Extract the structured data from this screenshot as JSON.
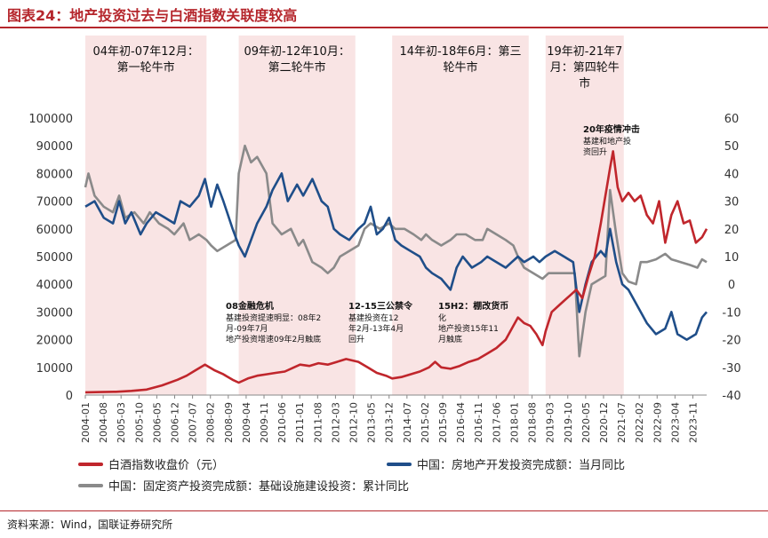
{
  "header": {
    "title": "图表24：地产投资过去与白酒指数关联度较高"
  },
  "footer": {
    "source": "资料来源：Wind，国联证券研究所"
  },
  "chart_data": {
    "type": "line",
    "left_axis": {
      "min": 0,
      "max": 100000,
      "ticks": [
        0,
        10000,
        20000,
        30000,
        40000,
        50000,
        60000,
        70000,
        80000,
        90000,
        100000
      ]
    },
    "right_axis": {
      "min": -40,
      "max": 60,
      "ticks": [
        -40,
        -30,
        -20,
        -10,
        0,
        10,
        20,
        30,
        40,
        50,
        60
      ]
    },
    "x_start": 2004.0,
    "x_end": 2024.25,
    "x_ticks": [
      "2004-01",
      "2004-08",
      "2005-03",
      "2005-10",
      "2006-05",
      "2006-12",
      "2007-07",
      "2008-02",
      "2008-09",
      "2009-04",
      "2009-11",
      "2010-06",
      "2011-01",
      "2011-08",
      "2012-03",
      "2012-10",
      "2013-05",
      "2013-12",
      "2014-07",
      "2015-02",
      "2015-09",
      "2016-04",
      "2016-11",
      "2017-06",
      "2018-01",
      "2018-08",
      "2019-03",
      "2019-10",
      "2020-05",
      "2020-12",
      "2021-07",
      "2022-02",
      "2022-09",
      "2023-04",
      "2023-11"
    ],
    "bands": [
      {
        "start": 2004.0,
        "end": 2007.95,
        "label": [
          "04年初-07年12月：",
          "第一轮牛市"
        ]
      },
      {
        "start": 2009.0,
        "end": 2012.8,
        "label": [
          "09年初-12年10月：",
          "第二轮牛市"
        ]
      },
      {
        "start": 2014.0,
        "end": 2018.45,
        "label": [
          "14年初-18年6月：第三",
          "轮牛市"
        ]
      },
      {
        "start": 2019.0,
        "end": 2021.55,
        "label": [
          "19年初-21年7",
          "月：第四轮牛",
          "市"
        ]
      }
    ],
    "annotations": [
      {
        "title": "08金融危机",
        "lines": [
          "基建投资提速明显：08年2",
          "月-09年7月",
          "地产投资增速09年2月触底"
        ]
      },
      {
        "title": "12-15三公禁令",
        "lines": [
          "基建投资在12",
          "年2月-13年4月",
          "回升"
        ]
      },
      {
        "title": "15H2：棚改货币",
        "lines": [
          "化",
          "地产投资15年11",
          "月触底"
        ]
      },
      {
        "title": "20年疫情冲击",
        "lines": [
          "基建和地产投",
          "资回升"
        ]
      }
    ],
    "series": [
      {
        "name": "白酒指数收盘价（元）",
        "color": "#c0262c",
        "axis": "left",
        "points": [
          [
            2004.0,
            1000
          ],
          [
            2004.5,
            1100
          ],
          [
            2005.0,
            1200
          ],
          [
            2005.5,
            1500
          ],
          [
            2006.0,
            2000
          ],
          [
            2006.5,
            3500
          ],
          [
            2007.0,
            5500
          ],
          [
            2007.3,
            7000
          ],
          [
            2007.6,
            9000
          ],
          [
            2007.9,
            11000
          ],
          [
            2008.2,
            9000
          ],
          [
            2008.5,
            7500
          ],
          [
            2008.8,
            5500
          ],
          [
            2009.0,
            4500
          ],
          [
            2009.3,
            6000
          ],
          [
            2009.6,
            7000
          ],
          [
            2009.9,
            7500
          ],
          [
            2010.2,
            8000
          ],
          [
            2010.5,
            8500
          ],
          [
            2010.8,
            10000
          ],
          [
            2011.0,
            11000
          ],
          [
            2011.3,
            10500
          ],
          [
            2011.6,
            11500
          ],
          [
            2011.9,
            11000
          ],
          [
            2012.2,
            12000
          ],
          [
            2012.5,
            13000
          ],
          [
            2012.7,
            12500
          ],
          [
            2012.9,
            12000
          ],
          [
            2013.2,
            10000
          ],
          [
            2013.5,
            8000
          ],
          [
            2013.8,
            7000
          ],
          [
            2014.0,
            6000
          ],
          [
            2014.3,
            6500
          ],
          [
            2014.6,
            7500
          ],
          [
            2014.9,
            8500
          ],
          [
            2015.2,
            10000
          ],
          [
            2015.4,
            12000
          ],
          [
            2015.6,
            10000
          ],
          [
            2015.9,
            9500
          ],
          [
            2016.2,
            10500
          ],
          [
            2016.5,
            12000
          ],
          [
            2016.8,
            13000
          ],
          [
            2017.1,
            15000
          ],
          [
            2017.4,
            17000
          ],
          [
            2017.7,
            20000
          ],
          [
            2017.95,
            25000
          ],
          [
            2018.1,
            28000
          ],
          [
            2018.3,
            26000
          ],
          [
            2018.5,
            25000
          ],
          [
            2018.7,
            22000
          ],
          [
            2018.9,
            18000
          ],
          [
            2019.0,
            23000
          ],
          [
            2019.2,
            30000
          ],
          [
            2019.5,
            33000
          ],
          [
            2019.8,
            36000
          ],
          [
            2020.0,
            38000
          ],
          [
            2020.2,
            35000
          ],
          [
            2020.4,
            43000
          ],
          [
            2020.6,
            50000
          ],
          [
            2020.8,
            62000
          ],
          [
            2020.95,
            72000
          ],
          [
            2021.1,
            82000
          ],
          [
            2021.2,
            88000
          ],
          [
            2021.35,
            75000
          ],
          [
            2021.5,
            70000
          ],
          [
            2021.7,
            73000
          ],
          [
            2021.9,
            70000
          ],
          [
            2022.1,
            72000
          ],
          [
            2022.3,
            65000
          ],
          [
            2022.5,
            62000
          ],
          [
            2022.7,
            70000
          ],
          [
            2022.9,
            55000
          ],
          [
            2023.1,
            65000
          ],
          [
            2023.3,
            70000
          ],
          [
            2023.5,
            62000
          ],
          [
            2023.7,
            63000
          ],
          [
            2023.9,
            55000
          ],
          [
            2024.1,
            57000
          ],
          [
            2024.25,
            60000
          ]
        ]
      },
      {
        "name": "中国：房地产开发投资完成额：当月同比",
        "color": "#1f4e89",
        "axis": "right",
        "points": [
          [
            2004.0,
            28
          ],
          [
            2004.3,
            30
          ],
          [
            2004.6,
            24
          ],
          [
            2004.9,
            22
          ],
          [
            2005.1,
            30
          ],
          [
            2005.3,
            22
          ],
          [
            2005.5,
            26
          ],
          [
            2005.8,
            18
          ],
          [
            2006.0,
            22
          ],
          [
            2006.3,
            26
          ],
          [
            2006.6,
            24
          ],
          [
            2006.9,
            22
          ],
          [
            2007.1,
            30
          ],
          [
            2007.4,
            28
          ],
          [
            2007.7,
            32
          ],
          [
            2007.9,
            38
          ],
          [
            2008.1,
            28
          ],
          [
            2008.3,
            36
          ],
          [
            2008.5,
            30
          ],
          [
            2008.8,
            20
          ],
          [
            2009.0,
            14
          ],
          [
            2009.2,
            10
          ],
          [
            2009.4,
            16
          ],
          [
            2009.6,
            22
          ],
          [
            2009.9,
            28
          ],
          [
            2010.1,
            34
          ],
          [
            2010.4,
            40
          ],
          [
            2010.6,
            30
          ],
          [
            2010.9,
            36
          ],
          [
            2011.1,
            32
          ],
          [
            2011.4,
            38
          ],
          [
            2011.7,
            30
          ],
          [
            2011.9,
            28
          ],
          [
            2012.1,
            20
          ],
          [
            2012.3,
            18
          ],
          [
            2012.6,
            16
          ],
          [
            2012.9,
            20
          ],
          [
            2013.1,
            22
          ],
          [
            2013.3,
            28
          ],
          [
            2013.5,
            18
          ],
          [
            2013.7,
            20
          ],
          [
            2013.9,
            24
          ],
          [
            2014.1,
            16
          ],
          [
            2014.3,
            14
          ],
          [
            2014.6,
            12
          ],
          [
            2014.9,
            10
          ],
          [
            2015.1,
            6
          ],
          [
            2015.3,
            4
          ],
          [
            2015.6,
            2
          ],
          [
            2015.9,
            -2
          ],
          [
            2016.1,
            6
          ],
          [
            2016.3,
            10
          ],
          [
            2016.6,
            6
          ],
          [
            2016.9,
            8
          ],
          [
            2017.1,
            10
          ],
          [
            2017.4,
            8
          ],
          [
            2017.7,
            6
          ],
          [
            2017.9,
            8
          ],
          [
            2018.1,
            10
          ],
          [
            2018.3,
            8
          ],
          [
            2018.6,
            10
          ],
          [
            2018.8,
            8
          ],
          [
            2019.0,
            10
          ],
          [
            2019.3,
            12
          ],
          [
            2019.6,
            10
          ],
          [
            2019.9,
            8
          ],
          [
            2020.1,
            -10
          ],
          [
            2020.3,
            0
          ],
          [
            2020.5,
            8
          ],
          [
            2020.8,
            12
          ],
          [
            2020.95,
            10
          ],
          [
            2021.1,
            20
          ],
          [
            2021.3,
            8
          ],
          [
            2021.5,
            0
          ],
          [
            2021.7,
            -2
          ],
          [
            2021.9,
            -6
          ],
          [
            2022.1,
            -10
          ],
          [
            2022.3,
            -14
          ],
          [
            2022.6,
            -18
          ],
          [
            2022.9,
            -16
          ],
          [
            2023.1,
            -10
          ],
          [
            2023.3,
            -18
          ],
          [
            2023.6,
            -20
          ],
          [
            2023.9,
            -18
          ],
          [
            2024.1,
            -12
          ],
          [
            2024.25,
            -10
          ]
        ]
      },
      {
        "name": "中国：固定资产投资完成额：基础设施建设投资：累计同比",
        "color": "#8a8a8a",
        "axis": "right",
        "points": [
          [
            2004.0,
            35
          ],
          [
            2004.1,
            40
          ],
          [
            2004.3,
            32
          ],
          [
            2004.6,
            28
          ],
          [
            2004.9,
            26
          ],
          [
            2005.1,
            32
          ],
          [
            2005.3,
            24
          ],
          [
            2005.6,
            26
          ],
          [
            2005.9,
            22
          ],
          [
            2006.1,
            26
          ],
          [
            2006.4,
            22
          ],
          [
            2006.7,
            20
          ],
          [
            2006.9,
            18
          ],
          [
            2007.2,
            22
          ],
          [
            2007.4,
            16
          ],
          [
            2007.7,
            18
          ],
          [
            2007.95,
            16
          ],
          [
            2008.1,
            14
          ],
          [
            2008.3,
            12
          ],
          [
            2008.6,
            14
          ],
          [
            2008.9,
            16
          ],
          [
            2009.0,
            40
          ],
          [
            2009.2,
            50
          ],
          [
            2009.4,
            44
          ],
          [
            2009.6,
            46
          ],
          [
            2009.9,
            40
          ],
          [
            2010.1,
            22
          ],
          [
            2010.4,
            18
          ],
          [
            2010.7,
            20
          ],
          [
            2010.95,
            14
          ],
          [
            2011.1,
            16
          ],
          [
            2011.4,
            8
          ],
          [
            2011.7,
            6
          ],
          [
            2011.9,
            4
          ],
          [
            2012.1,
            6
          ],
          [
            2012.3,
            10
          ],
          [
            2012.6,
            12
          ],
          [
            2012.9,
            14
          ],
          [
            2013.1,
            20
          ],
          [
            2013.3,
            22
          ],
          [
            2013.6,
            20
          ],
          [
            2013.9,
            22
          ],
          [
            2014.1,
            20
          ],
          [
            2014.4,
            20
          ],
          [
            2014.7,
            18
          ],
          [
            2014.95,
            16
          ],
          [
            2015.1,
            18
          ],
          [
            2015.3,
            16
          ],
          [
            2015.6,
            14
          ],
          [
            2015.9,
            16
          ],
          [
            2016.1,
            18
          ],
          [
            2016.4,
            18
          ],
          [
            2016.7,
            16
          ],
          [
            2016.95,
            16
          ],
          [
            2017.1,
            20
          ],
          [
            2017.4,
            18
          ],
          [
            2017.7,
            16
          ],
          [
            2017.95,
            14
          ],
          [
            2018.1,
            10
          ],
          [
            2018.3,
            6
          ],
          [
            2018.6,
            4
          ],
          [
            2018.9,
            2
          ],
          [
            2019.1,
            4
          ],
          [
            2019.4,
            4
          ],
          [
            2019.7,
            4
          ],
          [
            2019.95,
            4
          ],
          [
            2020.1,
            -26
          ],
          [
            2020.3,
            -10
          ],
          [
            2020.5,
            0
          ],
          [
            2020.8,
            2
          ],
          [
            2020.95,
            3
          ],
          [
            2021.1,
            34
          ],
          [
            2021.3,
            18
          ],
          [
            2021.5,
            4
          ],
          [
            2021.7,
            1
          ],
          [
            2021.95,
            0
          ],
          [
            2022.1,
            8
          ],
          [
            2022.3,
            8
          ],
          [
            2022.6,
            9
          ],
          [
            2022.9,
            11
          ],
          [
            2023.1,
            9
          ],
          [
            2023.4,
            8
          ],
          [
            2023.7,
            7
          ],
          [
            2023.95,
            6
          ],
          [
            2024.1,
            9
          ],
          [
            2024.25,
            8
          ]
        ]
      }
    ]
  }
}
